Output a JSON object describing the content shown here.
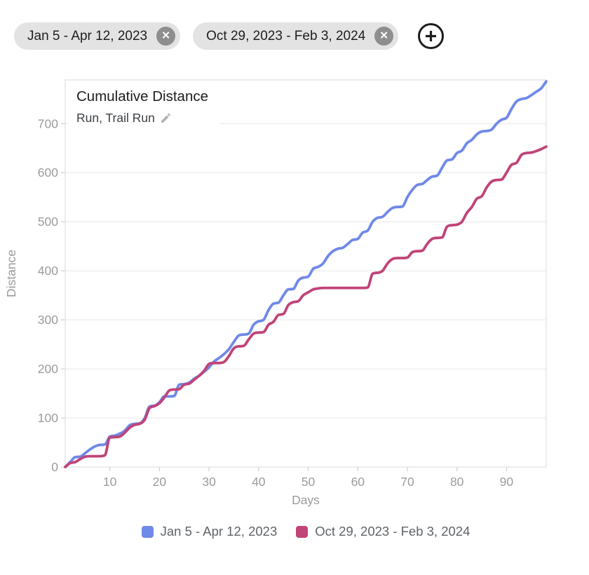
{
  "filters": {
    "close_glyph": "✕",
    "chips": [
      {
        "label": "Jan 5 - Apr 12, 2023"
      },
      {
        "label": "Oct 29, 2023 - Feb 3, 2024"
      }
    ]
  },
  "colors": {
    "chip_bg": "#e3e3e3",
    "chip_close_bg": "#8e8e8e",
    "axis_text": "#9b9b9b",
    "grid_line": "#e7e7e7",
    "plot_border": "#dedede",
    "legend_text": "#5f6368",
    "title_text": "#1d1d1d"
  },
  "chart_data": {
    "type": "line",
    "title": "Cumulative Distance",
    "subtitle": "Run, Trail Run",
    "xlabel": "Days",
    "ylabel": "Distance",
    "xlim": [
      1,
      98
    ],
    "ylim": [
      0,
      789
    ],
    "xticks": [
      10,
      20,
      30,
      40,
      50,
      60,
      70,
      80,
      90
    ],
    "yticks": [
      0,
      100,
      200,
      300,
      400,
      500,
      600,
      700
    ],
    "grid": "horizontal",
    "legend_position": "bottom",
    "series": [
      {
        "name": "Jan 5 - Apr 12, 2023",
        "color": "#6f89e8",
        "values": [
          0,
          10,
          20,
          21,
          28,
          36,
          42,
          45,
          46,
          62,
          64,
          68,
          74,
          85,
          88,
          89,
          99,
          123,
          125,
          132,
          144,
          144,
          145,
          168,
          169,
          172,
          180,
          186,
          194,
          203,
          215,
          222,
          230,
          240,
          255,
          268,
          270,
          272,
          290,
          297,
          300,
          320,
          333,
          335,
          350,
          362,
          363,
          380,
          386,
          388,
          404,
          408,
          415,
          430,
          440,
          445,
          447,
          455,
          463,
          465,
          478,
          482,
          500,
          508,
          510,
          520,
          528,
          530,
          531,
          550,
          565,
          575,
          577,
          585,
          592,
          594,
          610,
          625,
          627,
          640,
          645,
          660,
          667,
          678,
          684,
          685,
          688,
          700,
          708,
          712,
          730,
          745,
          750,
          752,
          758,
          765,
          772,
          786
        ]
      },
      {
        "name": "Oct 29, 2023 - Feb 3, 2024",
        "color": "#c04478",
        "values": [
          0,
          8,
          10,
          16,
          21,
          22,
          22,
          22,
          24,
          60,
          61,
          62,
          70,
          80,
          86,
          88,
          96,
          120,
          124,
          130,
          142,
          156,
          158,
          159,
          168,
          170,
          178,
          186,
          196,
          210,
          212,
          212,
          214,
          226,
          242,
          246,
          247,
          260,
          272,
          274,
          275,
          290,
          296,
          310,
          312,
          330,
          336,
          338,
          350,
          356,
          362,
          364,
          365,
          365,
          365,
          365,
          365,
          365,
          365,
          365,
          365,
          366,
          394,
          396,
          400,
          415,
          424,
          426,
          426,
          427,
          438,
          440,
          441,
          455,
          465,
          467,
          468,
          490,
          493,
          494,
          500,
          518,
          530,
          547,
          552,
          570,
          582,
          585,
          586,
          600,
          616,
          620,
          636,
          640,
          641,
          644,
          648,
          653
        ]
      }
    ]
  }
}
